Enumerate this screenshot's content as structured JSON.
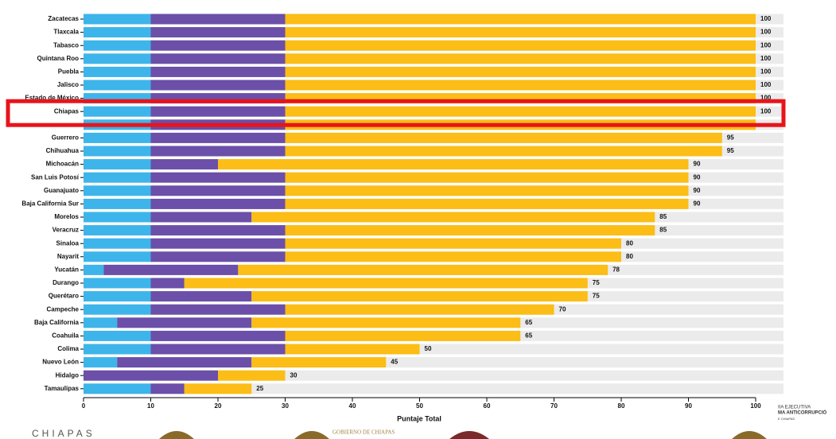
{
  "chart_data": {
    "type": "stacked-barh",
    "xlabel": "Puntaje Total",
    "categories": [
      "Zacatecas",
      "Tlaxcala",
      "Tabasco",
      "Quintana Roo",
      "Puebla",
      "Jalisco",
      "Estado de México",
      "Chiapas",
      null,
      "Guerrero",
      "Chihuahua",
      "Michoacán",
      "San Luis Potosí",
      "Guanajuato",
      "Baja California Sur",
      "Morelos",
      "Veracruz",
      "Sinaloa",
      "Nayarit",
      "Yucatán",
      "Durango",
      "Querétaro",
      "Campeche",
      "Baja California",
      "Coahuila",
      "Colima",
      "Nuevo León",
      "Hidalgo",
      "Tamaulipas"
    ],
    "series": [
      {
        "color": "#3db5ea",
        "values": [
          10,
          10,
          10,
          10,
          10,
          10,
          10,
          10,
          10,
          10,
          10,
          10,
          10,
          10,
          10,
          10,
          10,
          10,
          10,
          3,
          10,
          10,
          10,
          5,
          10,
          10,
          5,
          0,
          10
        ]
      },
      {
        "color": "#6b4fa8",
        "values": [
          20,
          20,
          20,
          20,
          20,
          20,
          20,
          20,
          20,
          20,
          20,
          10,
          20,
          20,
          20,
          15,
          20,
          20,
          20,
          20,
          5,
          15,
          20,
          20,
          20,
          20,
          20,
          20,
          5
        ]
      },
      {
        "color": "#fbbd16",
        "values": [
          70,
          70,
          70,
          70,
          70,
          70,
          70,
          70,
          70,
          65,
          65,
          70,
          60,
          60,
          60,
          60,
          55,
          50,
          50,
          55,
          60,
          50,
          40,
          40,
          35,
          20,
          20,
          10,
          10
        ]
      }
    ],
    "totals": [
      100,
      100,
      100,
      100,
      100,
      100,
      100,
      100,
      null,
      95,
      95,
      90,
      90,
      90,
      90,
      85,
      85,
      80,
      80,
      78,
      75,
      75,
      70,
      65,
      65,
      50,
      45,
      30,
      25
    ],
    "xlim": [
      0,
      100
    ],
    "xticks": [
      0,
      10,
      20,
      30,
      40,
      50,
      60,
      70,
      80,
      90,
      100
    ],
    "track_color": "#ebebeb",
    "highlight_color": "#e8141b"
  },
  "footer": {
    "left": "CHIAPAS",
    "center": "GOBIERNO DE CHIAPAS",
    "right": [
      "IIA EJECUTIVA",
      "MA ANTICORRUPCIÓ",
      "E CHIAPAS"
    ]
  }
}
